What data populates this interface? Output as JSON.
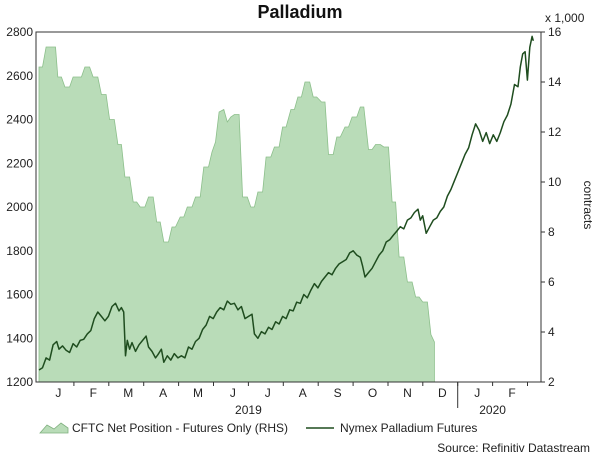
{
  "chart_data": {
    "type": "area+line",
    "title": "Palladium",
    "source": "Source: Refinitiv Datastream",
    "left_axis": {
      "ylim": [
        1200,
        2800
      ],
      "ticks": [
        "1200",
        "1400",
        "1600",
        "1800",
        "2000",
        "2200",
        "2400",
        "2600",
        "2800"
      ]
    },
    "right_axis": {
      "label": "contracts",
      "unit_label": "x 1,000",
      "ylim": [
        2,
        16
      ],
      "ticks": [
        "2",
        "4",
        "6",
        "8",
        "10",
        "12",
        "14",
        "16"
      ]
    },
    "x_axis": {
      "months": [
        "J",
        "F",
        "M",
        "A",
        "M",
        "J",
        "J",
        "A",
        "S",
        "O",
        "N",
        "D",
        "J",
        "F"
      ],
      "years": [
        "2019",
        "2020"
      ]
    },
    "series": [
      {
        "name": "CFTC Net Position - Futures Only (RHS)",
        "kind": "area",
        "axis": "right",
        "color": "#b9dcb8",
        "points": [
          [
            0.0,
            14.6
          ],
          [
            0.3,
            14.6
          ],
          [
            0.6,
            15.4
          ],
          [
            1.4,
            15.4
          ],
          [
            1.6,
            14.2
          ],
          [
            1.9,
            14.2
          ],
          [
            2.2,
            13.8
          ],
          [
            2.6,
            13.8
          ],
          [
            2.9,
            14.2
          ],
          [
            3.6,
            14.2
          ],
          [
            3.9,
            14.6
          ],
          [
            4.3,
            14.6
          ],
          [
            4.6,
            14.2
          ],
          [
            5.0,
            14.2
          ],
          [
            5.3,
            13.5
          ],
          [
            5.7,
            13.5
          ],
          [
            6.0,
            12.5
          ],
          [
            6.4,
            12.5
          ],
          [
            6.7,
            11.5
          ],
          [
            7.0,
            11.5
          ],
          [
            7.3,
            10.2
          ],
          [
            7.7,
            10.2
          ],
          [
            8.0,
            9.2
          ],
          [
            8.3,
            9.2
          ],
          [
            8.6,
            9.0
          ],
          [
            9.0,
            9.0
          ],
          [
            9.3,
            9.4
          ],
          [
            9.7,
            9.4
          ],
          [
            10.0,
            8.4
          ],
          [
            10.3,
            8.4
          ],
          [
            10.6,
            7.6
          ],
          [
            11.0,
            7.6
          ],
          [
            11.3,
            8.2
          ],
          [
            11.6,
            8.2
          ],
          [
            12.0,
            8.6
          ],
          [
            12.3,
            8.6
          ],
          [
            12.6,
            9.0
          ],
          [
            13.0,
            9.0
          ],
          [
            13.3,
            9.4
          ],
          [
            13.7,
            9.4
          ],
          [
            14.0,
            10.6
          ],
          [
            14.4,
            10.6
          ],
          [
            14.7,
            11.2
          ],
          [
            15.0,
            11.6
          ],
          [
            15.3,
            12.8
          ],
          [
            15.7,
            12.9
          ],
          [
            16.0,
            12.4
          ],
          [
            16.3,
            12.6
          ],
          [
            16.6,
            12.7
          ],
          [
            17.0,
            12.7
          ],
          [
            17.3,
            9.4
          ],
          [
            17.7,
            9.4
          ],
          [
            18.0,
            9.0
          ],
          [
            18.3,
            9.0
          ],
          [
            18.6,
            9.6
          ],
          [
            19.0,
            9.6
          ],
          [
            19.3,
            11.0
          ],
          [
            19.7,
            11.0
          ],
          [
            20.0,
            11.4
          ],
          [
            20.4,
            11.4
          ],
          [
            20.7,
            12.2
          ],
          [
            21.0,
            12.2
          ],
          [
            21.4,
            12.9
          ],
          [
            21.7,
            12.9
          ],
          [
            22.0,
            13.4
          ],
          [
            22.3,
            13.4
          ],
          [
            22.6,
            14.0
          ],
          [
            23.0,
            14.0
          ],
          [
            23.3,
            13.4
          ],
          [
            23.6,
            13.4
          ],
          [
            24.0,
            13.2
          ],
          [
            24.3,
            13.2
          ],
          [
            24.6,
            11.1
          ],
          [
            25.0,
            11.1
          ],
          [
            25.3,
            11.8
          ],
          [
            25.6,
            11.8
          ],
          [
            26.0,
            12.2
          ],
          [
            26.3,
            12.2
          ],
          [
            26.6,
            12.6
          ],
          [
            27.0,
            12.6
          ],
          [
            27.3,
            13.0
          ],
          [
            27.6,
            13.0
          ],
          [
            28.0,
            11.3
          ],
          [
            28.3,
            11.3
          ],
          [
            28.6,
            11.5
          ],
          [
            29.0,
            11.5
          ],
          [
            29.3,
            11.4
          ],
          [
            29.7,
            11.4
          ],
          [
            30.0,
            9.2
          ],
          [
            30.3,
            9.2
          ],
          [
            30.6,
            7.0
          ],
          [
            31.0,
            7.0
          ],
          [
            31.3,
            6.0
          ],
          [
            31.7,
            6.0
          ],
          [
            32.0,
            5.4
          ],
          [
            32.3,
            5.4
          ],
          [
            32.6,
            5.2
          ],
          [
            33.0,
            5.2
          ],
          [
            33.3,
            3.9
          ],
          [
            33.6,
            3.6
          ]
        ]
      },
      {
        "name": "Nymex Palladium Futures",
        "kind": "line",
        "axis": "left",
        "color": "#1f4d1f",
        "points": [
          [
            0.0,
            1255
          ],
          [
            0.3,
            1265
          ],
          [
            0.6,
            1310
          ],
          [
            0.9,
            1300
          ],
          [
            1.2,
            1370
          ],
          [
            1.5,
            1385
          ],
          [
            1.7,
            1350
          ],
          [
            2.0,
            1365
          ],
          [
            2.3,
            1345
          ],
          [
            2.6,
            1335
          ],
          [
            2.9,
            1375
          ],
          [
            3.2,
            1360
          ],
          [
            3.5,
            1390
          ],
          [
            3.8,
            1395
          ],
          [
            4.1,
            1420
          ],
          [
            4.4,
            1435
          ],
          [
            4.7,
            1490
          ],
          [
            5.0,
            1520
          ],
          [
            5.3,
            1500
          ],
          [
            5.6,
            1480
          ],
          [
            5.9,
            1500
          ],
          [
            6.2,
            1545
          ],
          [
            6.5,
            1560
          ],
          [
            6.8,
            1525
          ],
          [
            7.0,
            1540
          ],
          [
            7.2,
            1520
          ],
          [
            7.35,
            1320
          ],
          [
            7.5,
            1390
          ],
          [
            7.7,
            1350
          ],
          [
            7.9,
            1380
          ],
          [
            8.2,
            1340
          ],
          [
            8.5,
            1370
          ],
          [
            8.8,
            1390
          ],
          [
            9.1,
            1410
          ],
          [
            9.3,
            1360
          ],
          [
            9.6,
            1340
          ],
          [
            9.9,
            1310
          ],
          [
            10.1,
            1325
          ],
          [
            10.4,
            1350
          ],
          [
            10.6,
            1290
          ],
          [
            10.9,
            1320
          ],
          [
            11.2,
            1300
          ],
          [
            11.5,
            1330
          ],
          [
            11.8,
            1310
          ],
          [
            12.1,
            1320
          ],
          [
            12.4,
            1310
          ],
          [
            12.7,
            1360
          ],
          [
            13.0,
            1350
          ],
          [
            13.3,
            1385
          ],
          [
            13.6,
            1400
          ],
          [
            13.9,
            1440
          ],
          [
            14.2,
            1460
          ],
          [
            14.5,
            1500
          ],
          [
            14.8,
            1490
          ],
          [
            15.1,
            1520
          ],
          [
            15.4,
            1540
          ],
          [
            15.7,
            1530
          ],
          [
            16.0,
            1570
          ],
          [
            16.3,
            1555
          ],
          [
            16.6,
            1560
          ],
          [
            16.9,
            1530
          ],
          [
            17.2,
            1545
          ],
          [
            17.5,
            1490
          ],
          [
            17.8,
            1500
          ],
          [
            18.1,
            1510
          ],
          [
            18.3,
            1420
          ],
          [
            18.6,
            1400
          ],
          [
            18.9,
            1430
          ],
          [
            19.2,
            1420
          ],
          [
            19.5,
            1450
          ],
          [
            19.8,
            1440
          ],
          [
            20.1,
            1475
          ],
          [
            20.4,
            1465
          ],
          [
            20.7,
            1500
          ],
          [
            21.0,
            1490
          ],
          [
            21.3,
            1530
          ],
          [
            21.6,
            1525
          ],
          [
            21.9,
            1565
          ],
          [
            22.2,
            1560
          ],
          [
            22.5,
            1600
          ],
          [
            22.8,
            1585
          ],
          [
            23.1,
            1620
          ],
          [
            23.4,
            1650
          ],
          [
            23.7,
            1630
          ],
          [
            24.0,
            1660
          ],
          [
            24.3,
            1680
          ],
          [
            24.6,
            1700
          ],
          [
            24.9,
            1690
          ],
          [
            25.2,
            1720
          ],
          [
            25.5,
            1740
          ],
          [
            25.8,
            1750
          ],
          [
            26.1,
            1760
          ],
          [
            26.4,
            1790
          ],
          [
            26.7,
            1800
          ],
          [
            27.0,
            1780
          ],
          [
            27.3,
            1770
          ],
          [
            27.5,
            1730
          ],
          [
            27.7,
            1680
          ],
          [
            28.0,
            1700
          ],
          [
            28.3,
            1720
          ],
          [
            28.6,
            1750
          ],
          [
            28.9,
            1780
          ],
          [
            29.2,
            1800
          ],
          [
            29.5,
            1840
          ],
          [
            29.8,
            1850
          ],
          [
            30.1,
            1870
          ],
          [
            30.4,
            1890
          ],
          [
            30.7,
            1910
          ],
          [
            31.0,
            1900
          ],
          [
            31.3,
            1940
          ],
          [
            31.6,
            1950
          ],
          [
            31.9,
            1975
          ],
          [
            32.2,
            1990
          ],
          [
            32.4,
            1940
          ],
          [
            32.6,
            1960
          ],
          [
            32.9,
            1880
          ],
          [
            33.2,
            1910
          ],
          [
            33.5,
            1940
          ],
          [
            33.8,
            1950
          ],
          [
            34.1,
            1980
          ],
          [
            34.4,
            2000
          ],
          [
            34.7,
            2050
          ],
          [
            35.0,
            2080
          ],
          [
            35.3,
            2120
          ],
          [
            35.6,
            2160
          ],
          [
            35.9,
            2200
          ],
          [
            36.2,
            2240
          ],
          [
            36.5,
            2270
          ],
          [
            36.8,
            2330
          ],
          [
            37.1,
            2380
          ],
          [
            37.4,
            2350
          ],
          [
            37.7,
            2300
          ],
          [
            38.0,
            2340
          ],
          [
            38.3,
            2290
          ],
          [
            38.6,
            2330
          ],
          [
            38.9,
            2300
          ],
          [
            39.2,
            2340
          ],
          [
            39.5,
            2390
          ],
          [
            39.8,
            2420
          ],
          [
            40.1,
            2470
          ],
          [
            40.4,
            2560
          ],
          [
            40.7,
            2550
          ],
          [
            40.9,
            2640
          ],
          [
            41.1,
            2700
          ],
          [
            41.3,
            2710
          ],
          [
            41.5,
            2580
          ],
          [
            41.7,
            2730
          ],
          [
            41.9,
            2780
          ],
          [
            42.0,
            2760
          ]
        ]
      }
    ],
    "legend_position": "bottom-left",
    "grid": false
  }
}
